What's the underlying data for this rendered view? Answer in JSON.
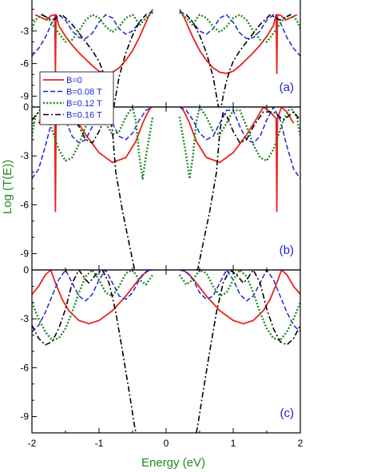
{
  "chart_data": {
    "type": "line",
    "xlabel": "Energy (eV)",
    "ylabel": "Log (T(E))",
    "xlim": [
      -2,
      2
    ],
    "x_ticks": [
      -2,
      -1,
      0,
      1,
      2
    ],
    "x_tick_labels": [
      "-2",
      "-1",
      "0",
      "1",
      "2"
    ],
    "y_ticks": [
      0,
      -3,
      -6,
      -9
    ],
    "y_tick_labels": [
      "0",
      "-3",
      "-6",
      "-9"
    ],
    "grid": false,
    "legend": {
      "placement": "lower-left of panel (a)",
      "entries": [
        {
          "label": "B=0",
          "color": "#e8231e",
          "dash": "solid"
        },
        {
          "label": "B=0.08 T",
          "color": "#1d24d8",
          "dash": "dashed"
        },
        {
          "label": "B=0.12 T",
          "color": "#1e8a1e",
          "dash": "dotted"
        },
        {
          "label": "B=0.16 T",
          "color": "#000000",
          "dash": "dash-dot"
        }
      ]
    },
    "panels": [
      {
        "label": "(a)",
        "ylim": [
          -10,
          0
        ],
        "y_visible_top": -1.5,
        "series": [
          {
            "name": "B=0",
            "x": [
              -1.95,
              -1.85,
              -1.78,
              -1.72,
              -1.66,
              -1.65,
              -1.64,
              -1.6,
              -1.5,
              -1.4,
              -1.3,
              -1.2,
              -1.1,
              -1.0,
              -0.9,
              -0.8,
              -0.7,
              -0.6,
              -0.5,
              -0.4,
              -0.3,
              -0.25,
              -0.22,
              -0.2
            ],
            "y": [
              -1.5,
              -1.8,
              -2.0,
              -1.6,
              -1.5,
              -6.9,
              -1.5,
              -2.5,
              -3.5,
              -4.3,
              -5.0,
              -5.6,
              -6.2,
              -6.7,
              -6.9,
              -6.8,
              -6.4,
              -5.7,
              -4.8,
              -3.6,
              -2.2,
              -1.5,
              -1.2,
              -1.0
            ]
          },
          {
            "name": "B=0.08 T",
            "x": [
              -2.0,
              -1.9,
              -1.8,
              -1.7,
              -1.6,
              -1.5,
              -1.4,
              -1.3,
              -1.2,
              -1.1,
              -1.0,
              -0.9,
              -0.8,
              -0.7,
              -0.6,
              -0.5,
              -0.4,
              -0.3,
              -0.2
            ],
            "y": [
              -5.3,
              -4.6,
              -3.6,
              -2.2,
              -1.5,
              -2.0,
              -3.0,
              -3.6,
              -3.7,
              -3.2,
              -2.2,
              -1.5,
              -1.8,
              -2.8,
              -3.3,
              -3.0,
              -2.2,
              -1.5,
              -1.2
            ]
          },
          {
            "name": "B=0.12 T",
            "x": [
              -2.0,
              -1.95,
              -1.85,
              -1.75,
              -1.6,
              -1.5,
              -1.4,
              -1.3,
              -1.2,
              -1.1,
              -1.0,
              -0.9,
              -0.8,
              -0.7,
              -0.6,
              -0.5,
              -0.45,
              -0.4,
              -0.3,
              -0.2
            ],
            "y": [
              -2.8,
              -2.0,
              -1.5,
              -1.9,
              -3.2,
              -4.0,
              -3.8,
              -3.0,
              -2.0,
              -1.5,
              -1.8,
              -2.6,
              -3.1,
              -2.6,
              -1.8,
              -1.5,
              -1.9,
              -2.5,
              -1.8,
              -1.3
            ]
          },
          {
            "name": "B=0.16 T",
            "x": [
              -1.85,
              -1.7,
              -1.55,
              -1.4,
              -1.25,
              -1.1,
              -1.0,
              -0.95,
              -0.9,
              -0.85,
              -0.82,
              -0.78,
              -0.7,
              -0.6,
              -0.5,
              -0.4,
              -0.3
            ],
            "y": [
              -1.5,
              -2.0,
              -1.5,
              -2.4,
              -3.6,
              -4.8,
              -5.8,
              -6.6,
              -7.6,
              -9.0,
              -10.0,
              -10.0,
              -7.2,
              -5.0,
              -3.4,
              -2.2,
              -1.5
            ]
          }
        ]
      },
      {
        "label": "(b)",
        "ylim": [
          -10,
          0
        ],
        "series": [
          {
            "name": "B=0",
            "x": [
              -1.9,
              -1.8,
              -1.72,
              -1.66,
              -1.65,
              -1.64,
              -1.55,
              -1.45,
              -1.35,
              -1.2,
              -1.0,
              -0.8,
              -0.6,
              -0.45,
              -0.35,
              -0.27,
              -0.22
            ],
            "y": [
              -1.0,
              -0.3,
              0.0,
              -0.7,
              -6.4,
              -0.7,
              -0.3,
              0.0,
              -0.7,
              -1.7,
              -2.8,
              -3.4,
              -3.1,
              -2.1,
              -1.0,
              -0.3,
              0.0
            ]
          },
          {
            "name": "B=0.08 T",
            "x": [
              -2.0,
              -1.9,
              -1.8,
              -1.7,
              -1.6,
              -1.5,
              -1.4,
              -1.3,
              -1.2,
              -1.1,
              -1.0,
              -0.9,
              -0.8,
              -0.7,
              -0.6,
              -0.5,
              -0.4,
              -0.3,
              -0.2
            ],
            "y": [
              -4.4,
              -3.8,
              -2.4,
              -0.8,
              0.0,
              -0.8,
              -1.8,
              -2.2,
              -2.0,
              -1.2,
              -0.2,
              -0.2,
              -1.0,
              -1.8,
              -2.0,
              -1.6,
              -0.8,
              -0.2,
              0.0
            ]
          },
          {
            "name": "B=0.12 T",
            "x": [
              -2.0,
              -1.95,
              -1.85,
              -1.75,
              -1.6,
              -1.5,
              -1.4,
              -1.3,
              -1.2,
              -1.1,
              -1.0,
              -0.9,
              -0.8,
              -0.7,
              -0.6,
              -0.5,
              -0.45,
              -0.4,
              -0.35,
              -0.3,
              -0.2
            ],
            "y": [
              -1.8,
              -0.6,
              0.0,
              -0.8,
              -2.6,
              -3.3,
              -3.1,
              -2.3,
              -1.2,
              -0.2,
              -0.2,
              -1.0,
              -1.7,
              -1.5,
              -0.6,
              0.0,
              -0.9,
              -3.0,
              -4.4,
              -3.0,
              -0.6
            ]
          },
          {
            "name": "B=0.16 T",
            "x": [
              -2.0,
              -1.9,
              -1.75,
              -1.6,
              -1.45,
              -1.3,
              -1.2,
              -1.1,
              -1.0,
              -0.9,
              -0.85,
              -0.8,
              -0.75,
              -0.65,
              -0.55,
              -0.5,
              -0.47,
              -0.45
            ],
            "y": [
              -0.8,
              -0.3,
              -0.8,
              -0.3,
              -0.3,
              -1.2,
              -2.0,
              -2.2,
              -1.5,
              -0.5,
              -0.3,
              -1.5,
              -4.0,
              -6.4,
              -8.4,
              -9.4,
              -10.0,
              -10.0
            ]
          }
        ]
      },
      {
        "label": "(c)",
        "ylim": [
          -10,
          0
        ],
        "series": [
          {
            "name": "B=0",
            "x": [
              -2.0,
              -1.9,
              -1.8,
              -1.72,
              -1.65,
              -1.55,
              -1.45,
              -1.3,
              -1.15,
              -1.0,
              -0.8,
              -0.6,
              -0.45,
              -0.35,
              -0.25
            ],
            "y": [
              -1.5,
              -1.0,
              -0.3,
              0.0,
              -0.8,
              -1.8,
              -2.5,
              -3.1,
              -3.3,
              -3.1,
              -2.5,
              -1.6,
              -0.8,
              -0.3,
              0.0
            ]
          },
          {
            "name": "B=0.08 T",
            "x": [
              -2.0,
              -1.9,
              -1.8,
              -1.7,
              -1.6,
              -1.5,
              -1.4,
              -1.3,
              -1.2,
              -1.1,
              -1.0,
              -0.9,
              -0.8,
              -0.7,
              -0.6,
              -0.5,
              -0.4,
              -0.3,
              -0.2
            ],
            "y": [
              -3.8,
              -3.4,
              -2.6,
              -1.6,
              -0.6,
              0.0,
              -0.8,
              -1.6,
              -1.9,
              -1.5,
              -0.6,
              0.0,
              -0.8,
              -1.6,
              -1.8,
              -1.4,
              -0.6,
              -0.1,
              0.0
            ]
          },
          {
            "name": "B=0.12 T",
            "x": [
              -2.0,
              -1.9,
              -1.8,
              -1.7,
              -1.6,
              -1.5,
              -1.4,
              -1.3,
              -1.2,
              -1.1,
              -1.0,
              -0.9,
              -0.8,
              -0.7,
              -0.6,
              -0.5,
              -0.4,
              -0.3,
              -0.2
            ],
            "y": [
              -2.0,
              -3.0,
              -3.8,
              -4.3,
              -4.2,
              -3.6,
              -2.6,
              -1.4,
              -0.4,
              0.0,
              -0.6,
              -1.4,
              -1.6,
              -1.0,
              -0.2,
              0.0,
              -0.6,
              -0.9,
              -0.3
            ]
          },
          {
            "name": "B=0.16 T",
            "x": [
              -2.0,
              -1.9,
              -1.8,
              -1.7,
              -1.6,
              -1.5,
              -1.4,
              -1.3,
              -1.2,
              -1.15,
              -1.05,
              -0.95,
              -0.85,
              -0.75,
              -0.65,
              -0.55,
              -0.5,
              -0.47,
              -0.45
            ],
            "y": [
              -3.4,
              -4.2,
              -4.6,
              -4.4,
              -3.6,
              -2.4,
              -0.8,
              0.0,
              -0.6,
              -0.8,
              -0.3,
              0.0,
              -0.8,
              -2.6,
              -5.0,
              -7.5,
              -8.8,
              -9.6,
              -10.0
            ]
          }
        ]
      }
    ]
  },
  "colors": {
    "axis": "#000000",
    "ylabel": "#1e8a1e",
    "xlabel": "#1e8a1e",
    "panel_label": "#1d24d8",
    "legend_text": "#1d24d8"
  }
}
